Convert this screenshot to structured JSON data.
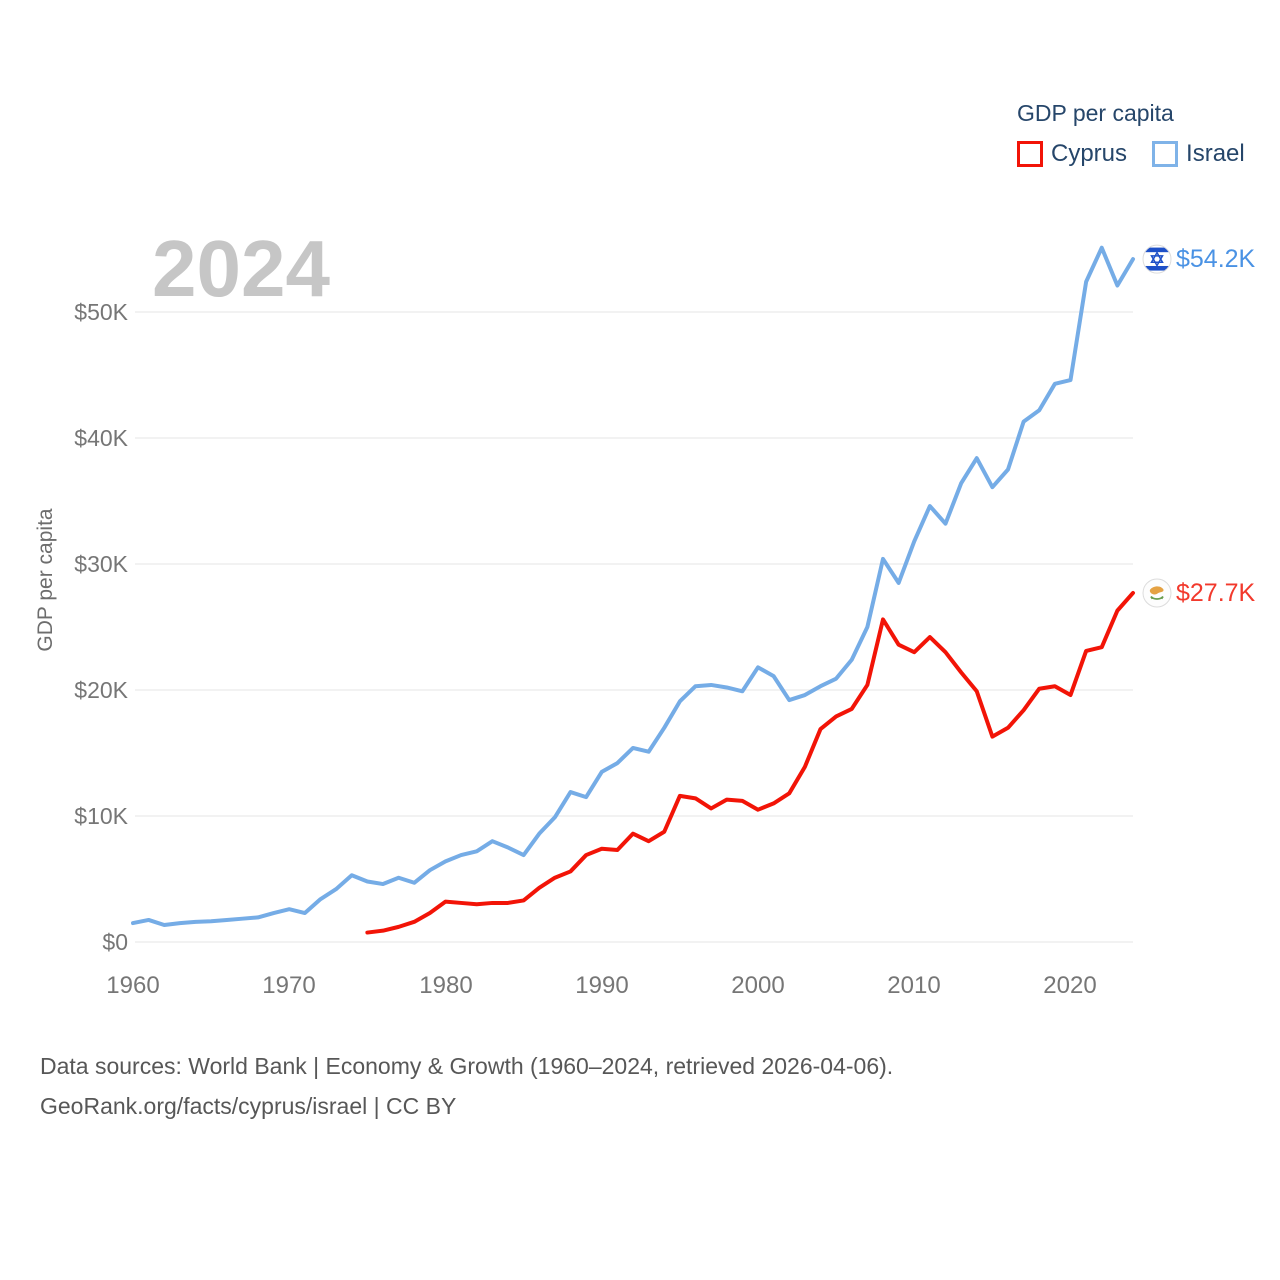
{
  "watermark_year": "2024",
  "legend": {
    "title": "GDP per capita",
    "items": [
      {
        "label": "Cyprus",
        "color": "#f21407"
      },
      {
        "label": "Israel",
        "color": "#7fb3e8"
      }
    ]
  },
  "y_axis": {
    "title": "GDP per capita",
    "ticks": [
      "$0",
      "$10K",
      "$20K",
      "$30K",
      "$40K",
      "$50K"
    ]
  },
  "x_axis": {
    "ticks": [
      "1960",
      "1970",
      "1980",
      "1990",
      "2000",
      "2010",
      "2020"
    ]
  },
  "end_labels": {
    "israel": "$54.2K",
    "cyprus": "$27.7K"
  },
  "footer": {
    "line1": "Data sources: World Bank | Economy & Growth (1960–2024, retrieved 2026-04-06).",
    "line2": "GeoRank.org/facts/cyprus/israel | CC BY"
  },
  "chart_data": {
    "type": "line",
    "title": "GDP per capita",
    "ylabel": "GDP per capita",
    "xlabel": "",
    "x_range": [
      1960,
      2024
    ],
    "ylim": [
      0,
      55500
    ],
    "grid": "horizontal",
    "legend_position": "top-right",
    "y_gridlines_k": [
      0,
      10,
      20,
      30,
      40,
      50
    ],
    "x_tick_years": [
      1960,
      1970,
      1980,
      1990,
      2000,
      2010,
      2020
    ],
    "units": "USD per capita (thousands)",
    "series": [
      {
        "name": "Cyprus",
        "color": "#f21407",
        "start_year": 1975,
        "end_year": 2024,
        "end_value_label": "$27.7K",
        "values_k": [
          0.75,
          0.9,
          1.2,
          1.6,
          2.3,
          3.2,
          3.1,
          3.0,
          3.1,
          3.1,
          3.3,
          4.3,
          5.1,
          5.6,
          6.9,
          7.4,
          7.3,
          8.6,
          8.0,
          8.75,
          11.6,
          11.4,
          10.6,
          11.3,
          11.2,
          10.5,
          11.0,
          11.8,
          13.9,
          16.9,
          17.9,
          18.5,
          20.4,
          25.6,
          23.6,
          23.0,
          24.2,
          23.0,
          21.4,
          19.9,
          16.3,
          17.0,
          18.4,
          20.1,
          20.3,
          19.6,
          23.1,
          23.4,
          26.3,
          27.7
        ]
      },
      {
        "name": "Israel",
        "color": "#75ace6",
        "start_year": 1960,
        "end_year": 2024,
        "end_value_label": "$54.2K",
        "values_k": [
          1.5,
          1.75,
          1.35,
          1.5,
          1.6,
          1.65,
          1.75,
          1.85,
          1.95,
          2.3,
          2.6,
          2.3,
          3.4,
          4.2,
          5.3,
          4.8,
          4.6,
          5.1,
          4.7,
          5.7,
          6.4,
          6.9,
          7.2,
          8.0,
          7.5,
          6.9,
          8.6,
          9.9,
          11.9,
          11.5,
          13.5,
          14.2,
          15.4,
          15.1,
          17.0,
          19.1,
          20.3,
          20.4,
          20.2,
          19.9,
          21.8,
          21.1,
          19.2,
          19.6,
          20.3,
          20.9,
          22.4,
          25.0,
          30.4,
          28.5,
          31.8,
          34.6,
          33.2,
          36.4,
          38.4,
          36.1,
          37.5,
          41.3,
          42.2,
          44.3,
          44.6,
          52.4,
          55.1,
          52.1,
          54.2
        ]
      }
    ]
  },
  "colors": {
    "cyprus_line": "#f21407",
    "cyprus_label": "#f2392c",
    "israel_line": "#75ace6",
    "israel_label": "#4a92e4",
    "gridline": "#ededed",
    "tick_text": "#767676",
    "legend_text": "#26466a",
    "watermark": "#c6c6c6",
    "footer_text": "#575757"
  }
}
